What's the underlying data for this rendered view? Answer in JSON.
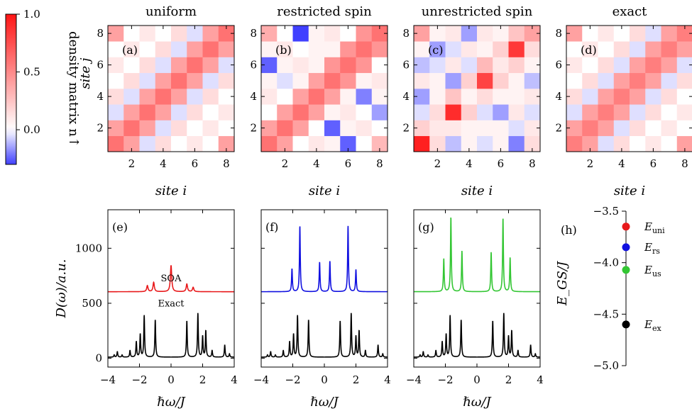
{
  "colors": {
    "uniform": "#e8191b",
    "restricted_spin": "#1010e0",
    "unrestricted_spin": "#33c633",
    "exact": "#000000"
  },
  "colorbar": {
    "label": "density matrix n↑",
    "ticks": [
      "1.0",
      "0.5",
      "0.0"
    ],
    "min": -0.3,
    "max": 1.0
  },
  "chart_data": [
    {
      "type": "heatmap",
      "panel": "(a)",
      "title": "uniform",
      "xlabel": "site i",
      "ylabel": "site j",
      "x_ticks": [
        "2",
        "4",
        "6",
        "8"
      ],
      "y_ticks": [
        "2",
        "4",
        "6",
        "8"
      ],
      "note": "rows listed from j=1 (bottom) to j=8 (top), columns i=1..8",
      "values": [
        [
          0.6,
          0.4,
          -0.05,
          0.15,
          0.0,
          0.1,
          0.0,
          0.4
        ],
        [
          0.4,
          0.6,
          0.4,
          -0.05,
          0.15,
          0.0,
          0.1,
          0.0
        ],
        [
          -0.05,
          0.4,
          0.6,
          0.4,
          -0.05,
          0.15,
          0.0,
          0.1
        ],
        [
          0.15,
          -0.05,
          0.4,
          0.6,
          0.4,
          -0.05,
          0.15,
          0.0
        ],
        [
          0.0,
          0.15,
          -0.05,
          0.4,
          0.6,
          0.4,
          -0.05,
          0.15
        ],
        [
          0.1,
          0.0,
          0.15,
          -0.05,
          0.4,
          0.6,
          0.4,
          -0.05
        ],
        [
          0.0,
          0.1,
          0.0,
          0.15,
          -0.05,
          0.4,
          0.6,
          0.4
        ],
        [
          0.4,
          0.0,
          0.1,
          0.0,
          0.15,
          -0.05,
          0.4,
          0.6
        ]
      ]
    },
    {
      "type": "heatmap",
      "panel": "(b)",
      "title": "restricted spin",
      "xlabel": "site i",
      "ylabel": "",
      "x_ticks": [
        "2",
        "4",
        "6",
        "8"
      ],
      "y_ticks": [
        "2",
        "4",
        "6",
        "8"
      ],
      "values": [
        [
          0.6,
          0.4,
          0.0,
          0.1,
          0.05,
          -0.25,
          0.0,
          0.3
        ],
        [
          0.4,
          0.6,
          0.4,
          0.0,
          -0.25,
          0.05,
          0.1,
          0.0
        ],
        [
          0.0,
          0.4,
          0.6,
          0.4,
          0.05,
          0.1,
          0.0,
          -0.15
        ],
        [
          0.1,
          0.0,
          0.4,
          0.6,
          0.4,
          0.05,
          -0.2,
          0.05
        ],
        [
          0.05,
          -0.05,
          0.05,
          0.4,
          0.6,
          0.45,
          0.05,
          0.1
        ],
        [
          -0.25,
          0.05,
          0.1,
          0.05,
          0.45,
          0.6,
          0.45,
          0.0
        ],
        [
          0.05,
          0.1,
          0.0,
          0.05,
          0.05,
          0.45,
          0.6,
          0.45
        ],
        [
          0.35,
          0.0,
          -0.3,
          0.05,
          0.1,
          0.0,
          0.45,
          0.6
        ]
      ]
    },
    {
      "type": "heatmap",
      "panel": "(c)",
      "title": "unrestricted spin",
      "xlabel": "site i",
      "ylabel": "",
      "x_ticks": [
        "2",
        "4",
        "6",
        "8"
      ],
      "y_ticks": [
        "2",
        "4",
        "6",
        "8"
      ],
      "values": [
        [
          0.95,
          0.15,
          -0.1,
          0.05,
          -0.05,
          0.05,
          -0.2,
          0.15
        ],
        [
          0.2,
          0.1,
          0.1,
          0.05,
          0.05,
          0.05,
          -0.05,
          0.1
        ],
        [
          -0.05,
          0.15,
          0.9,
          0.2,
          -0.05,
          -0.15,
          0.1,
          -0.05
        ],
        [
          -0.15,
          0.05,
          0.25,
          0.05,
          0.15,
          0.05,
          0.05,
          0.1
        ],
        [
          0.1,
          0.05,
          -0.15,
          0.2,
          0.8,
          0.2,
          0.05,
          -0.1
        ],
        [
          -0.1,
          -0.05,
          0.1,
          -0.05,
          0.3,
          0.1,
          0.2,
          0.05
        ],
        [
          0.05,
          -0.15,
          -0.05,
          0.1,
          0.05,
          0.2,
          0.85,
          0.15
        ],
        [
          0.4,
          0.05,
          0.1,
          -0.15,
          0.1,
          0.05,
          0.25,
          0.4
        ]
      ]
    },
    {
      "type": "heatmap",
      "panel": "(d)",
      "title": "exact",
      "xlabel": "site i",
      "ylabel": "",
      "x_ticks": [
        "2",
        "4",
        "6",
        "8"
      ],
      "y_ticks": [
        "2",
        "4",
        "6",
        "8"
      ],
      "values": [
        [
          0.55,
          0.4,
          -0.05,
          0.15,
          0.0,
          0.1,
          0.0,
          0.4
        ],
        [
          0.4,
          0.55,
          0.4,
          -0.05,
          0.15,
          0.0,
          0.1,
          0.0
        ],
        [
          -0.05,
          0.4,
          0.55,
          0.4,
          -0.05,
          0.15,
          0.0,
          0.1
        ],
        [
          0.15,
          -0.05,
          0.4,
          0.55,
          0.4,
          -0.05,
          0.15,
          0.0
        ],
        [
          0.0,
          0.15,
          -0.05,
          0.4,
          0.55,
          0.4,
          -0.05,
          0.15
        ],
        [
          0.1,
          0.0,
          0.15,
          -0.05,
          0.4,
          0.55,
          0.4,
          -0.05
        ],
        [
          0.0,
          0.1,
          0.0,
          0.15,
          -0.05,
          0.4,
          0.55,
          0.4
        ],
        [
          0.4,
          0.0,
          0.1,
          0.0,
          0.15,
          -0.05,
          0.4,
          0.55
        ]
      ]
    },
    {
      "type": "line",
      "panel": "(e)",
      "xlabel": "ℏω/J",
      "ylabel": "D(ω)/a.u.",
      "xlim": [
        -4,
        4
      ],
      "ylim": [
        -80,
        1350
      ],
      "x_ticks": [
        "−4",
        "−2",
        "0",
        "2",
        "4"
      ],
      "y_ticks": [
        "0",
        "500",
        "1000"
      ],
      "annotations": [
        "SOA",
        "Exact"
      ],
      "series": [
        {
          "name": "SOA",
          "color": "#e8191b",
          "baseline": 605,
          "width": 0.05,
          "peaks": [
            [
              -1.5,
              55
            ],
            [
              -1.1,
              85
            ],
            [
              0.0,
              240
            ],
            [
              1.0,
              70
            ],
            [
              1.4,
              40
            ]
          ]
        },
        {
          "name": "Exact",
          "color": "#000000",
          "baseline": 10,
          "width": 0.03,
          "peaks": [
            [
              -3.6,
              20
            ],
            [
              -3.4,
              50
            ],
            [
              -3.1,
              20
            ],
            [
              -2.6,
              60
            ],
            [
              -2.2,
              140
            ],
            [
              -1.95,
              210
            ],
            [
              -1.7,
              380
            ],
            [
              -1.0,
              340
            ],
            [
              1.0,
              330
            ],
            [
              1.7,
              400
            ],
            [
              2.0,
              190
            ],
            [
              2.2,
              240
            ],
            [
              2.6,
              60
            ],
            [
              3.4,
              110
            ],
            [
              3.7,
              30
            ]
          ]
        }
      ]
    },
    {
      "type": "line",
      "panel": "(f)",
      "xlabel": "ℏω/J",
      "ylabel": "",
      "xlim": [
        -4,
        4
      ],
      "ylim": [
        -80,
        1350
      ],
      "x_ticks": [
        "−4",
        "−2",
        "0",
        "2",
        "4"
      ],
      "y_ticks": [],
      "series": [
        {
          "name": "restricted spin",
          "color": "#1010e0",
          "baseline": 605,
          "width": 0.03,
          "peaks": [
            [
              -2.05,
              210
            ],
            [
              -1.55,
              600
            ],
            [
              -0.3,
              270
            ],
            [
              0.35,
              280
            ],
            [
              1.5,
              600
            ],
            [
              2.0,
              200
            ]
          ]
        },
        {
          "name": "Exact",
          "color": "#000000",
          "baseline": 10,
          "width": 0.03,
          "peaks": [
            [
              -3.6,
              20
            ],
            [
              -3.4,
              50
            ],
            [
              -3.1,
              20
            ],
            [
              -2.6,
              60
            ],
            [
              -2.2,
              140
            ],
            [
              -1.95,
              210
            ],
            [
              -1.7,
              380
            ],
            [
              -1.0,
              340
            ],
            [
              1.0,
              330
            ],
            [
              1.7,
              400
            ],
            [
              2.0,
              190
            ],
            [
              2.2,
              240
            ],
            [
              2.6,
              60
            ],
            [
              3.4,
              110
            ],
            [
              3.7,
              30
            ]
          ]
        }
      ]
    },
    {
      "type": "line",
      "panel": "(g)",
      "xlabel": "ℏω/J",
      "ylabel": "",
      "xlim": [
        -4,
        4
      ],
      "ylim": [
        -80,
        1350
      ],
      "x_ticks": [
        "−4",
        "−2",
        "0",
        "2",
        "4"
      ],
      "y_ticks": [],
      "series": [
        {
          "name": "unrestricted spin",
          "color": "#33c633",
          "baseline": 605,
          "width": 0.03,
          "peaks": [
            [
              -2.1,
              300
            ],
            [
              -1.65,
              680
            ],
            [
              -0.95,
              370
            ],
            [
              0.9,
              360
            ],
            [
              1.65,
              670
            ],
            [
              2.1,
              310
            ]
          ]
        },
        {
          "name": "Exact",
          "color": "#000000",
          "baseline": 10,
          "width": 0.03,
          "peaks": [
            [
              -3.6,
              20
            ],
            [
              -3.4,
              50
            ],
            [
              -3.1,
              20
            ],
            [
              -2.6,
              60
            ],
            [
              -2.2,
              140
            ],
            [
              -1.95,
              210
            ],
            [
              -1.7,
              380
            ],
            [
              -1.0,
              340
            ],
            [
              1.0,
              330
            ],
            [
              1.7,
              400
            ],
            [
              2.0,
              190
            ],
            [
              2.2,
              240
            ],
            [
              2.6,
              60
            ],
            [
              3.4,
              110
            ],
            [
              3.7,
              30
            ]
          ]
        }
      ]
    },
    {
      "type": "scatter",
      "panel": "(h)",
      "ylabel": "E_GS/J",
      "ylim": [
        -5.0,
        -3.5
      ],
      "y_ticks": [
        "−3.5",
        "−4.0",
        "−4.5",
        "−5.0"
      ],
      "points": [
        {
          "name": "E_uni",
          "value": -3.65,
          "color": "#e8191b"
        },
        {
          "name": "E_rs",
          "value": -3.85,
          "color": "#1010e0"
        },
        {
          "name": "E_us",
          "value": -4.07,
          "color": "#33c633"
        },
        {
          "name": "E_ex",
          "value": -4.6,
          "color": "#000000"
        }
      ]
    }
  ]
}
